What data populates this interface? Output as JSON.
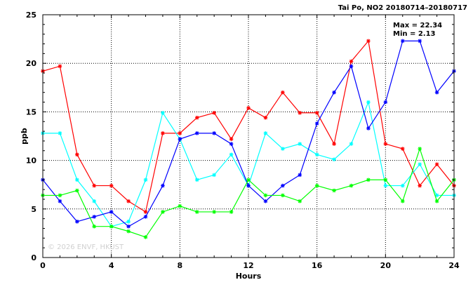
{
  "chart_data": {
    "type": "line",
    "title": "Tai Po, NO2 20180714–20180717",
    "xlabel": "Hours",
    "ylabel": "ppb",
    "xlim": [
      0,
      24
    ],
    "ylim": [
      0,
      25
    ],
    "xticks": [
      0,
      4,
      8,
      12,
      16,
      20,
      24
    ],
    "yticks": [
      0,
      5,
      10,
      15,
      20,
      25
    ],
    "grid": true,
    "max_label": "Max = 22.34",
    "min_label": "Min =  2.13",
    "watermark": "© 2026  ENVF, HKUST",
    "x": [
      0,
      1,
      2,
      3,
      4,
      5,
      6,
      7,
      8,
      9,
      10,
      11,
      12,
      13,
      14,
      15,
      16,
      17,
      18,
      19,
      20,
      21,
      22,
      23,
      24
    ],
    "series": [
      {
        "color": "#ff0000",
        "values": [
          19.2,
          19.7,
          10.6,
          7.4,
          7.4,
          5.8,
          4.7,
          12.8,
          12.8,
          14.4,
          14.9,
          12.2,
          15.4,
          14.4,
          17.0,
          14.9,
          14.9,
          11.7,
          20.2,
          22.3,
          11.7,
          11.2,
          7.4,
          9.6,
          7.4
        ]
      },
      {
        "color": "#00ffff",
        "values": [
          12.8,
          12.8,
          8.0,
          5.8,
          3.2,
          3.7,
          8.0,
          14.9,
          12.2,
          8.0,
          8.5,
          10.6,
          7.4,
          12.8,
          11.2,
          11.7,
          10.6,
          10.1,
          11.7,
          16.0,
          7.4,
          7.4,
          9.6,
          6.4,
          6.4
        ]
      },
      {
        "color": "#0000ff",
        "values": [
          8.0,
          5.8,
          3.7,
          4.2,
          4.7,
          3.2,
          4.2,
          7.4,
          12.2,
          12.8,
          12.8,
          11.7,
          7.4,
          5.8,
          7.4,
          8.5,
          13.8,
          17.0,
          19.7,
          13.3,
          16.0,
          22.3,
          22.3,
          17.0,
          19.2
        ]
      },
      {
        "color": "#00ff00",
        "values": [
          6.4,
          6.4,
          6.9,
          3.2,
          3.2,
          2.7,
          2.1,
          4.7,
          5.3,
          4.7,
          4.7,
          4.7,
          8.0,
          6.4,
          6.4,
          5.8,
          7.4,
          6.9,
          7.4,
          8.0,
          8.0,
          5.8,
          11.2,
          5.8,
          8.0
        ]
      }
    ]
  }
}
